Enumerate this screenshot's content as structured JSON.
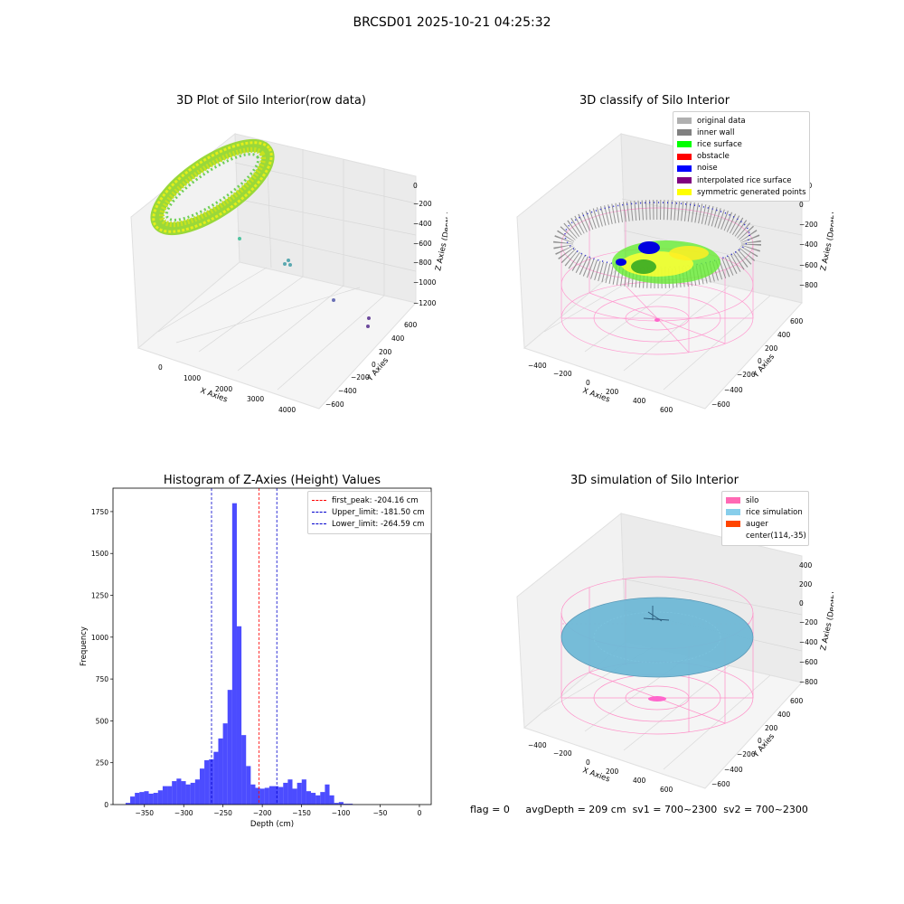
{
  "suptitle": "BRCSD01 2025-10-21 04:25:32",
  "colors": {
    "silo": "#ff69b4",
    "rice_sim": "#87ceeb",
    "auger": "#ff4500",
    "hist_bar": "#0000ff",
    "peak": "#ff0000",
    "limit": "#0000cd"
  },
  "panels": {
    "raw": {
      "title": "3D Plot of Silo Interior(row data)",
      "xlabel": "X Axies",
      "ylabel": "Y Axies",
      "zlabel": "Z Axies (Depth)",
      "xticks": [
        "0",
        "1000",
        "2000",
        "3000",
        "4000"
      ],
      "yticks": [
        "600",
        "400",
        "200",
        "0",
        "−200",
        "−400",
        "−600"
      ],
      "zticks": [
        "0",
        "−200",
        "−400",
        "−600",
        "−800",
        "−1000",
        "−1200"
      ]
    },
    "classify": {
      "title": "3D classify of Silo Interior",
      "xlabel": "X Axies",
      "ylabel": "Y Axies",
      "zlabel": "Z Axies (Depth)",
      "xticks": [
        "−400",
        "−200",
        "0",
        "200",
        "400",
        "600"
      ],
      "yticks": [
        "600",
        "400",
        "200",
        "0",
        "−200",
        "−400",
        "−600"
      ],
      "zticks": [
        "200",
        "0",
        "−200",
        "−400",
        "−600",
        "−800"
      ],
      "legend": [
        {
          "label": "original data",
          "color": "#b0b0b0"
        },
        {
          "label": "inner wall",
          "color": "#808080"
        },
        {
          "label": "rice surface",
          "color": "#00ff00"
        },
        {
          "label": "obstacle",
          "color": "#ff0000"
        },
        {
          "label": "noise",
          "color": "#0000ff"
        },
        {
          "label": "interpolated rice surface",
          "color": "#800080"
        },
        {
          "label": "symmetric generated points",
          "color": "#ffff00"
        }
      ]
    },
    "simulation": {
      "title": "3D simulation of Silo Interior",
      "xlabel": "X Axies",
      "ylabel": "Y Axies",
      "zlabel": "Z Axies (Depth)",
      "xticks": [
        "−400",
        "−200",
        "0",
        "200",
        "400",
        "600"
      ],
      "yticks": [
        "600",
        "400",
        "200",
        "0",
        "−200",
        "−400",
        "−600"
      ],
      "zticks": [
        "400",
        "200",
        "0",
        "−200",
        "−400",
        "−600",
        "−800"
      ],
      "legend": [
        {
          "label": "silo",
          "color": "#ff69b4"
        },
        {
          "label": "rice simulation",
          "color": "#87ceeb"
        },
        {
          "label": "auger",
          "color": "#ff4500"
        },
        {
          "label": "center(114,-35)",
          "color": null
        }
      ]
    }
  },
  "chart_data": {
    "type": "bar",
    "title": "Histogram of Z-Axies (Height) Values",
    "xlabel": "Depth (cm)",
    "ylabel": "Frequency",
    "xlim": [
      -390,
      15
    ],
    "ylim": [
      0,
      1890
    ],
    "bin_width": 5.9,
    "bin_start": -374,
    "values": [
      10,
      48,
      70,
      75,
      80,
      65,
      70,
      85,
      110,
      110,
      140,
      155,
      140,
      120,
      130,
      150,
      215,
      265,
      270,
      315,
      395,
      485,
      685,
      1800,
      1065,
      415,
      230,
      120,
      100,
      95,
      100,
      110,
      110,
      105,
      130,
      150,
      95,
      130,
      150,
      80,
      70,
      55,
      75,
      120,
      55,
      10,
      15,
      5,
      5,
      0
    ],
    "xticks": [
      -350,
      -300,
      -250,
      -200,
      -150,
      -100,
      -50,
      0
    ],
    "xtick_labels": [
      "−350",
      "−300",
      "−250",
      "−200",
      "−150",
      "−100",
      "−50",
      "0"
    ],
    "yticks": [
      0,
      250,
      500,
      750,
      1000,
      1250,
      1500,
      1750
    ],
    "ytick_labels": [
      "0",
      "250",
      "500",
      "750",
      "1000",
      "1250",
      "1500",
      "1750"
    ],
    "lines": [
      {
        "label": "first_peak: -204.16 cm",
        "x": -204.16,
        "color": "#ff0000"
      },
      {
        "label": "Upper_limit: -181.50 cm",
        "x": -181.5,
        "color": "#0000cd"
      },
      {
        "label": "Lower_limit: -264.59 cm",
        "x": -264.59,
        "color": "#0000cd"
      }
    ],
    "legend_position": "top-right"
  },
  "footer": {
    "flag": "flag = 0",
    "avg": "avgDepth = 209 cm",
    "sv1": "sv1 = 700~2300",
    "sv2": "sv2 = 700~2300"
  }
}
